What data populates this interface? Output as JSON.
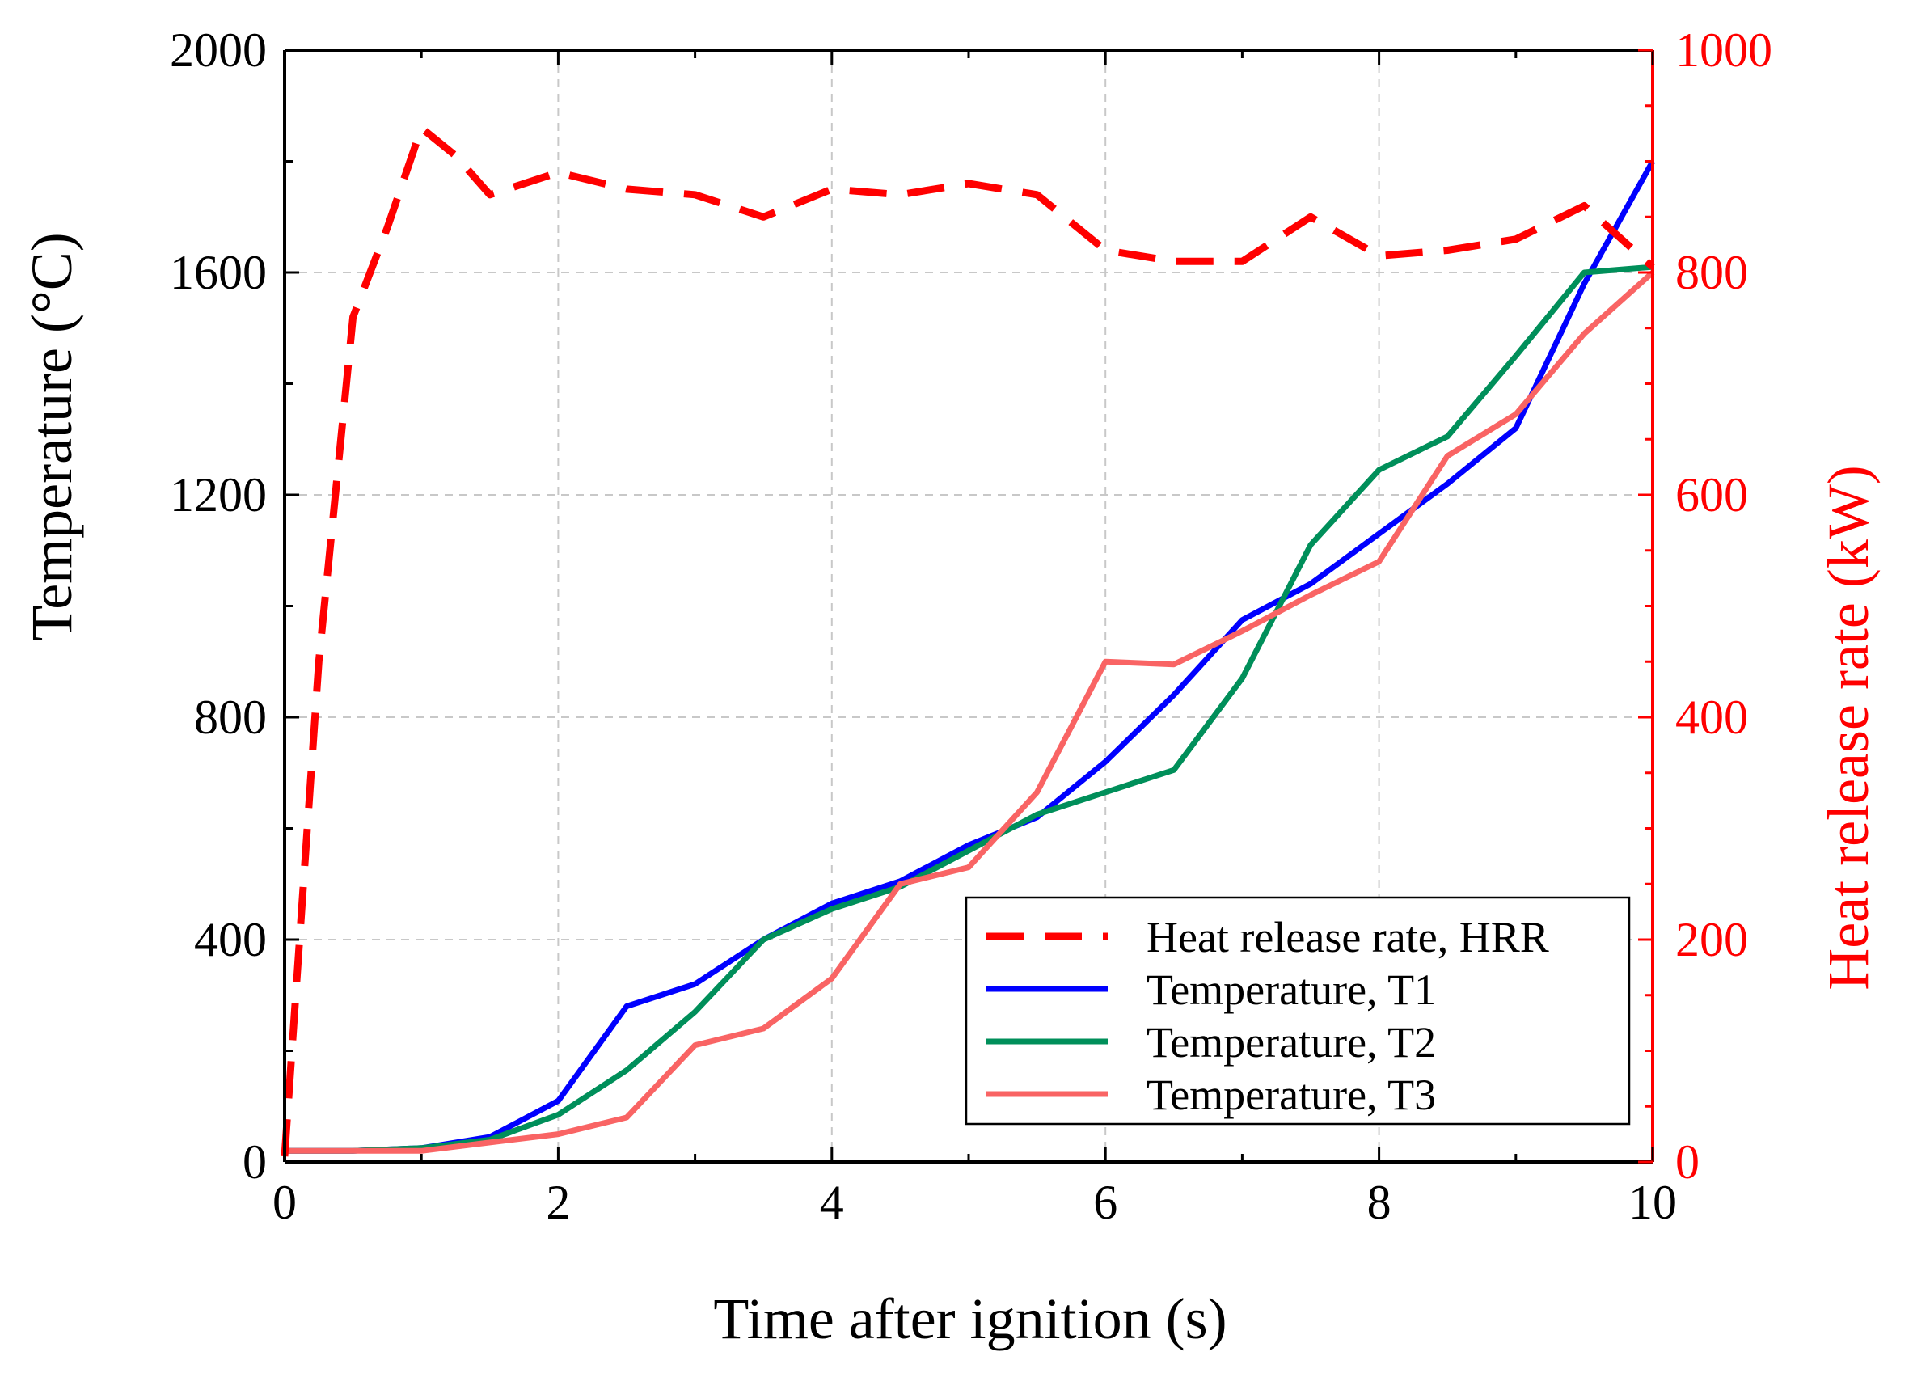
{
  "chart_data": {
    "type": "line",
    "xlabel": "Time after ignition (s)",
    "ylabel_left": "Temperature (°C)",
    "ylabel_right": "Heat release rate (kW)",
    "xlim": [
      0,
      10
    ],
    "ylim_left": [
      0,
      2000
    ],
    "ylim_right": [
      0,
      1000
    ],
    "xticks": [
      0,
      2,
      4,
      6,
      8,
      10
    ],
    "yticks_left": [
      0,
      400,
      800,
      1200,
      1600,
      2000
    ],
    "yticks_right": [
      0,
      200,
      400,
      600,
      800,
      1000
    ],
    "grid": true,
    "legend_position": "bottom-right",
    "colors": {
      "hrr": "#ff0000",
      "t1": "#0000ff",
      "t2": "#008f5a",
      "t3": "#f96464",
      "axis_right": "#ff0000",
      "grid": "#c8c8c8"
    },
    "series": [
      {
        "name": "Heat release rate, HRR",
        "axis": "right",
        "style": "dashed",
        "color_key": "hrr",
        "x": [
          0,
          0.25,
          0.5,
          0.75,
          1.0,
          1.25,
          1.5,
          2.0,
          2.5,
          3.0,
          3.5,
          4.0,
          4.5,
          5.0,
          5.5,
          6.0,
          6.5,
          7.0,
          7.5,
          8.0,
          8.5,
          9.0,
          9.5,
          10.0
        ],
        "values": [
          5,
          450,
          760,
          840,
          930,
          905,
          870,
          890,
          875,
          870,
          850,
          875,
          870,
          880,
          870,
          820,
          810,
          810,
          850,
          815,
          820,
          830,
          860,
          805
        ]
      },
      {
        "name": "Temperature, T1",
        "axis": "left",
        "style": "solid",
        "color_key": "t1",
        "x": [
          0,
          0.5,
          1.0,
          1.5,
          2.0,
          2.5,
          3.0,
          3.5,
          4.0,
          4.5,
          5.0,
          5.5,
          6.0,
          6.5,
          7.0,
          7.5,
          8.0,
          8.5,
          9.0,
          9.5,
          10.0
        ],
        "values": [
          20,
          20,
          25,
          45,
          110,
          280,
          320,
          400,
          465,
          505,
          570,
          620,
          720,
          840,
          975,
          1040,
          1130,
          1220,
          1320,
          1580,
          1800
        ]
      },
      {
        "name": "Temperature, T2",
        "axis": "left",
        "style": "solid",
        "color_key": "t2",
        "x": [
          0,
          0.5,
          1.0,
          1.5,
          2.0,
          2.5,
          3.0,
          3.5,
          4.0,
          4.5,
          5.0,
          5.5,
          6.0,
          6.5,
          7.0,
          7.5,
          8.0,
          8.5,
          9.0,
          9.5,
          10.0
        ],
        "values": [
          20,
          20,
          25,
          40,
          85,
          165,
          270,
          400,
          455,
          495,
          560,
          625,
          665,
          705,
          870,
          1110,
          1245,
          1305,
          1450,
          1600,
          1610
        ]
      },
      {
        "name": "Temperature, T3",
        "axis": "left",
        "style": "solid",
        "color_key": "t3",
        "x": [
          0,
          0.5,
          1.0,
          1.5,
          2.0,
          2.5,
          3.0,
          3.5,
          4.0,
          4.5,
          5.0,
          5.5,
          6.0,
          6.5,
          7.0,
          7.5,
          8.0,
          8.5,
          9.0,
          9.5,
          10.0
        ],
        "values": [
          20,
          20,
          20,
          35,
          50,
          80,
          210,
          240,
          330,
          500,
          530,
          665,
          900,
          895,
          955,
          1020,
          1080,
          1270,
          1345,
          1490,
          1600
        ]
      }
    ]
  }
}
